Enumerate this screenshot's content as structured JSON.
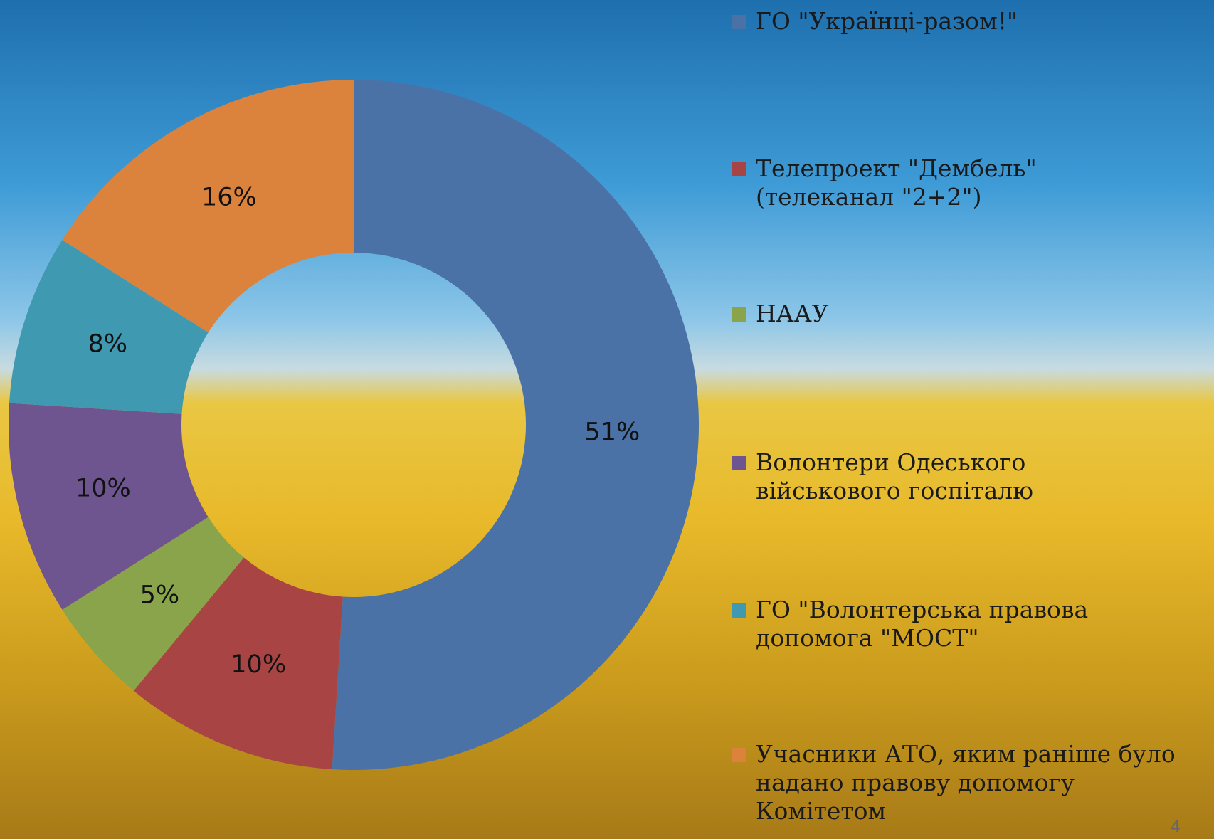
{
  "chart_data": {
    "type": "donut",
    "categories": [
      "ГО \"Українці-разом!\"",
      "Телепроект \"Дембель\" (телеканал \"2+2\")",
      "НААУ",
      "Волонтери Одеського військового госпіталю",
      "ГО \"Волонтерська правова допомога \"МОСТ\"",
      "Учасники АТО, яким раніше було надано правову допомогу Комітетом"
    ],
    "values": [
      51,
      10,
      5,
      10,
      8,
      16
    ],
    "value_labels": [
      "51%",
      "10%",
      "5%",
      "10%",
      "8%",
      "16%"
    ],
    "colors": [
      "#4a72a6",
      "#a84444",
      "#89a44b",
      "#6e558f",
      "#3f99b1",
      "#db823d"
    ],
    "legend": "right"
  },
  "slide_number": "4"
}
